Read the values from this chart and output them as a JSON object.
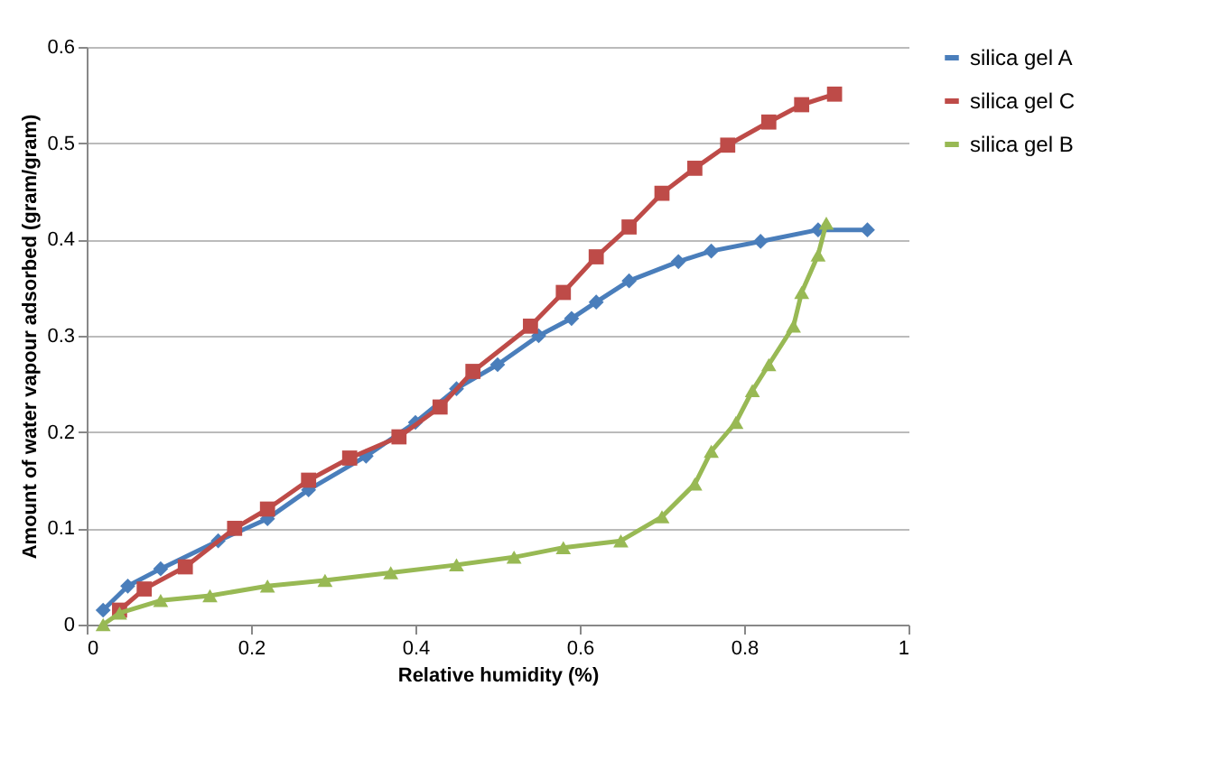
{
  "chart_data": {
    "type": "line",
    "xlabel": "Relative humidity (%)",
    "ylabel": "Amount of water vapour adsorbed (gram/gram)",
    "xlim": [
      0,
      1
    ],
    "xticks": [
      0,
      0.2,
      0.4,
      0.6,
      0.8,
      1
    ],
    "ylim": [
      0,
      0.6
    ],
    "yticks": [
      0,
      0.1,
      0.2,
      0.3,
      0.4,
      0.5,
      0.6
    ],
    "grid": "y",
    "legend": "right",
    "series": [
      {
        "name": "silica gel A",
        "color": "#4a7ebb",
        "marker": "diamond",
        "x": [
          0.02,
          0.05,
          0.09,
          0.16,
          0.22,
          0.27,
          0.34,
          0.4,
          0.45,
          0.5,
          0.55,
          0.59,
          0.62,
          0.66,
          0.72,
          0.76,
          0.82,
          0.89,
          0.95
        ],
        "values": [
          0.015,
          0.04,
          0.058,
          0.087,
          0.11,
          0.14,
          0.175,
          0.21,
          0.245,
          0.27,
          0.3,
          0.318,
          0.335,
          0.357,
          0.377,
          0.388,
          0.398,
          0.41,
          0.41
        ]
      },
      {
        "name": "silica gel C",
        "color": "#be4b48",
        "marker": "square",
        "x": [
          0.04,
          0.07,
          0.12,
          0.18,
          0.22,
          0.27,
          0.32,
          0.38,
          0.43,
          0.47,
          0.54,
          0.58,
          0.62,
          0.66,
          0.7,
          0.74,
          0.78,
          0.83,
          0.87,
          0.91
        ],
        "values": [
          0.015,
          0.037,
          0.06,
          0.1,
          0.12,
          0.15,
          0.173,
          0.195,
          0.226,
          0.263,
          0.31,
          0.345,
          0.382,
          0.413,
          0.448,
          0.474,
          0.498,
          0.522,
          0.54,
          0.551
        ]
      },
      {
        "name": "silica gel B",
        "color": "#98b954",
        "marker": "triangle",
        "x": [
          0.02,
          0.04,
          0.09,
          0.15,
          0.22,
          0.29,
          0.37,
          0.45,
          0.52,
          0.58,
          0.65,
          0.7,
          0.74,
          0.76,
          0.79,
          0.81,
          0.83,
          0.86,
          0.87,
          0.89,
          0.9
        ],
        "values": [
          0,
          0.012,
          0.025,
          0.03,
          0.04,
          0.046,
          0.054,
          0.062,
          0.07,
          0.08,
          0.087,
          0.112,
          0.146,
          0.18,
          0.21,
          0.243,
          0.27,
          0.31,
          0.345,
          0.384,
          0.417
        ]
      }
    ]
  }
}
